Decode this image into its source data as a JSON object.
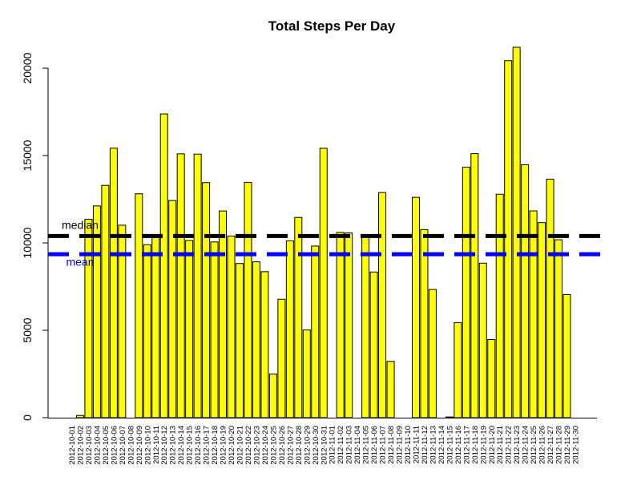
{
  "chart_data": {
    "type": "bar",
    "title": "Total Steps Per Day",
    "xlabel": "",
    "ylabel": "",
    "ylim": [
      0,
      21194
    ],
    "yticks": [
      0,
      5000,
      10000,
      15000,
      20000
    ],
    "bar_color": "#ffff00",
    "bar_border_color": "#000000",
    "categories": [
      "2012-10-01",
      "2012-10-02",
      "2012-10-03",
      "2012-10-04",
      "2012-10-05",
      "2012-10-06",
      "2012-10-07",
      "2012-10-08",
      "2012-10-09",
      "2012-10-10",
      "2012-10-11",
      "2012-10-12",
      "2012-10-13",
      "2012-10-14",
      "2012-10-15",
      "2012-10-16",
      "2012-10-17",
      "2012-10-18",
      "2012-10-19",
      "2012-10-20",
      "2012-10-21",
      "2012-10-22",
      "2012-10-23",
      "2012-10-24",
      "2012-10-25",
      "2012-10-26",
      "2012-10-27",
      "2012-10-28",
      "2012-10-29",
      "2012-10-30",
      "2012-10-31",
      "2012-11-01",
      "2012-11-02",
      "2012-11-03",
      "2012-11-04",
      "2012-11-05",
      "2012-11-06",
      "2012-11-07",
      "2012-11-08",
      "2012-11-09",
      "2012-11-10",
      "2012-11-11",
      "2012-11-12",
      "2012-11-13",
      "2012-11-14",
      "2012-11-15",
      "2012-11-16",
      "2012-11-17",
      "2012-11-18",
      "2012-11-19",
      "2012-11-20",
      "2012-11-21",
      "2012-11-22",
      "2012-11-23",
      "2012-11-24",
      "2012-11-25",
      "2012-11-26",
      "2012-11-27",
      "2012-11-28",
      "2012-11-29",
      "2012-11-30"
    ],
    "values": [
      0,
      126,
      11352,
      12116,
      13294,
      15420,
      11015,
      0,
      12811,
      9900,
      10304,
      17382,
      12426,
      15098,
      10139,
      15084,
      13452,
      10056,
      11829,
      10395,
      8821,
      13460,
      8918,
      8355,
      2492,
      6778,
      10119,
      11458,
      5018,
      9819,
      15414,
      0,
      10600,
      10571,
      0,
      10439,
      8334,
      12883,
      3219,
      0,
      0,
      12608,
      10765,
      7336,
      0,
      41,
      5441,
      14339,
      15110,
      8841,
      4472,
      12787,
      20427,
      21194,
      14478,
      11834,
      11162,
      13646,
      10183,
      7047,
      0
    ],
    "reference_lines": [
      {
        "label": "median",
        "value": 10395,
        "color": "#000000",
        "label_y_value": 10800
      },
      {
        "label": "mean",
        "value": 9354,
        "color": "#0000ff",
        "label_y_value": 8700
      }
    ]
  }
}
